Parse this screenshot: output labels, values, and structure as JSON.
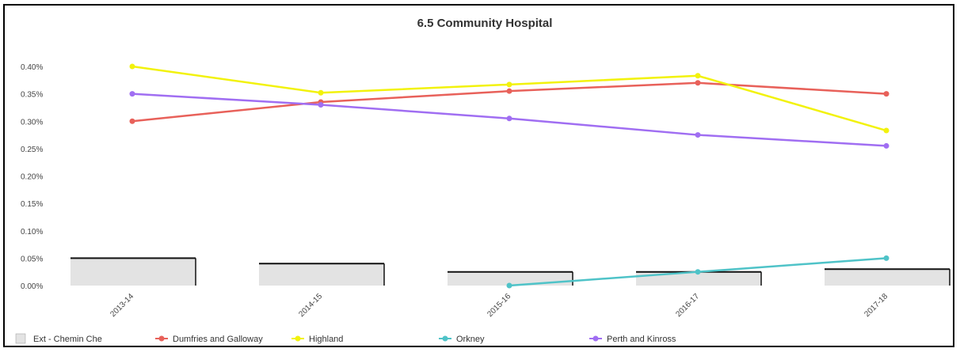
{
  "chart_data": {
    "type": "line",
    "title": "6.5 Community Hospital",
    "categories": [
      "2013-14",
      "2014-15",
      "2015-16",
      "2016-17",
      "2017-18"
    ],
    "y_ticks": [
      "0.00%",
      "0.05%",
      "0.10%",
      "0.15%",
      "0.20%",
      "0.25%",
      "0.30%",
      "0.35%",
      "0.40%"
    ],
    "ylim": [
      0,
      0.4
    ],
    "grid": false,
    "legend_position": "bottom",
    "series": [
      {
        "name": "Dumfries and Galloway",
        "type": "line",
        "color": "#e8615a",
        "values": [
          0.3,
          0.335,
          0.355,
          0.37,
          0.35
        ]
      },
      {
        "name": "Highland",
        "type": "line",
        "color": "#f2f20c",
        "values": [
          0.4,
          0.352,
          0.367,
          0.383,
          0.283
        ]
      },
      {
        "name": "Orkney",
        "type": "line",
        "color": "#4fc3c8",
        "values": [
          null,
          null,
          0.0,
          0.025,
          0.05
        ]
      },
      {
        "name": "Perth and Kinross",
        "type": "line",
        "color": "#a06ef2",
        "values": [
          0.35,
          0.33,
          0.305,
          0.275,
          0.255
        ]
      },
      {
        "name": "Ext - Chemin Che",
        "type": "bar",
        "color": "#e3e3e3",
        "values": [
          0.05,
          0.04,
          0.025,
          0.025,
          0.03
        ]
      }
    ]
  }
}
